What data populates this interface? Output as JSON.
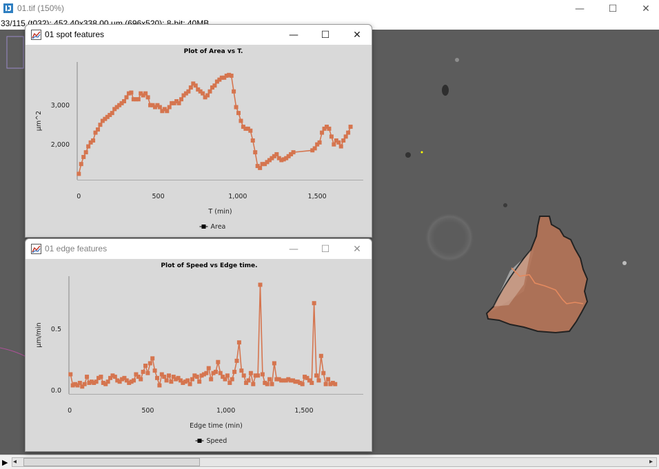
{
  "main_window": {
    "title": "01.tif (150%)",
    "info": "33/115 (t032); 452.40x338.00 µm (696x520); 8-bit; 40MB",
    "controls": {
      "minimize": "—",
      "maximize": "☐",
      "close": "✕"
    }
  },
  "slider": {
    "play": "▶",
    "left_arrow": "◂",
    "right_arrow": "▸"
  },
  "spot_window": {
    "title": "01 spot features",
    "controls": {
      "minimize": "—",
      "maximize": "☐",
      "close": "✕"
    },
    "chart_data": {
      "type": "line",
      "title": "Plot of Area vs T.",
      "xlabel": "T (min)",
      "ylabel": "µm^2",
      "xlim": [
        -10,
        1790
      ],
      "ylim": [
        1100,
        4100
      ],
      "xticks": [
        0,
        500,
        1000,
        1500
      ],
      "xtick_labels": [
        "0",
        "500",
        "1,000",
        "1,500"
      ],
      "yticks": [
        2000,
        3000
      ],
      "ytick_labels": [
        "2,000",
        "3,000"
      ],
      "legend": "bottom-center",
      "color": "#d5754f",
      "series": [
        {
          "name": "Area",
          "x": [
            0,
            15,
            30,
            45,
            60,
            75,
            90,
            105,
            120,
            135,
            150,
            165,
            180,
            195,
            210,
            225,
            240,
            255,
            270,
            285,
            300,
            315,
            330,
            345,
            360,
            375,
            390,
            405,
            420,
            435,
            450,
            465,
            480,
            495,
            510,
            525,
            540,
            555,
            570,
            585,
            600,
            615,
            630,
            645,
            660,
            675,
            690,
            705,
            720,
            735,
            750,
            765,
            780,
            795,
            810,
            825,
            840,
            855,
            870,
            885,
            900,
            915,
            930,
            945,
            960,
            975,
            990,
            1005,
            1020,
            1035,
            1050,
            1065,
            1080,
            1095,
            1110,
            1125,
            1140,
            1155,
            1170,
            1185,
            1200,
            1215,
            1230,
            1245,
            1260,
            1275,
            1290,
            1305,
            1320,
            1335,
            1350,
            1470,
            1485,
            1500,
            1515,
            1530,
            1545,
            1560,
            1575,
            1590,
            1605,
            1620,
            1635,
            1650,
            1665,
            1680,
            1695,
            1710
          ],
          "values": [
            1250,
            1500,
            1680,
            1800,
            1950,
            2050,
            2100,
            2300,
            2380,
            2500,
            2600,
            2650,
            2700,
            2750,
            2800,
            2900,
            2950,
            3000,
            3050,
            3100,
            3200,
            3300,
            3320,
            3150,
            3150,
            3150,
            3300,
            3250,
            3300,
            3200,
            3000,
            3000,
            2950,
            3000,
            2950,
            2850,
            2900,
            2850,
            2950,
            3050,
            3050,
            3100,
            3050,
            3150,
            3250,
            3300,
            3350,
            3450,
            3550,
            3500,
            3400,
            3350,
            3300,
            3200,
            3250,
            3350,
            3450,
            3500,
            3600,
            3650,
            3700,
            3700,
            3750,
            3770,
            3750,
            3350,
            2950,
            2800,
            2600,
            2450,
            2400,
            2400,
            2350,
            2100,
            1800,
            1450,
            1400,
            1500,
            1500,
            1550,
            1600,
            1650,
            1700,
            1750,
            1650,
            1600,
            1620,
            1650,
            1700,
            1750,
            1800,
            1850,
            1900,
            2000,
            2050,
            2300,
            2400,
            2450,
            2400,
            2200,
            2000,
            2100,
            2050,
            1950,
            2100,
            2200,
            2300,
            2450
          ]
        }
      ]
    }
  },
  "edge_window": {
    "title": "01 edge features",
    "controls": {
      "minimize": "—",
      "maximize": "☐",
      "close": "✕"
    },
    "chart_data": {
      "type": "line",
      "title": "Plot of Speed vs Edge time.",
      "xlabel": "Edge time (min)",
      "ylabel": "µm/min",
      "xlim": [
        -5,
        1880
      ],
      "ylim": [
        -0.03,
        0.93
      ],
      "xticks": [
        0,
        500,
        1000,
        1500
      ],
      "xtick_labels": [
        "0",
        "500",
        "1,000",
        "1,500"
      ],
      "yticks": [
        0.0,
        0.5
      ],
      "ytick_labels": [
        "0.0",
        "0.5"
      ],
      "legend": "bottom-center",
      "color": "#d5754f",
      "series": [
        {
          "name": "Speed",
          "x": [
            5,
            20,
            35,
            50,
            65,
            80,
            95,
            110,
            125,
            140,
            155,
            170,
            185,
            200,
            215,
            230,
            245,
            260,
            275,
            290,
            305,
            320,
            335,
            350,
            365,
            380,
            395,
            410,
            425,
            440,
            455,
            470,
            485,
            500,
            515,
            530,
            545,
            560,
            575,
            590,
            605,
            620,
            635,
            650,
            665,
            680,
            695,
            710,
            725,
            740,
            755,
            770,
            785,
            800,
            815,
            830,
            845,
            860,
            875,
            890,
            905,
            920,
            935,
            950,
            965,
            980,
            995,
            1010,
            1025,
            1040,
            1055,
            1070,
            1085,
            1100,
            1115,
            1130,
            1145,
            1160,
            1175,
            1190,
            1205,
            1220,
            1235,
            1250,
            1265,
            1280,
            1295,
            1310,
            1325,
            1340,
            1355,
            1370,
            1385,
            1400,
            1415,
            1430,
            1445,
            1460,
            1475,
            1490,
            1505,
            1520,
            1535,
            1550,
            1565,
            1580,
            1595,
            1610,
            1625,
            1640,
            1655,
            1670,
            1685,
            1700
          ],
          "values": [
            0.13,
            0.04,
            0.05,
            0.04,
            0.06,
            0.03,
            0.05,
            0.11,
            0.06,
            0.07,
            0.06,
            0.07,
            0.1,
            0.11,
            0.06,
            0.05,
            0.07,
            0.1,
            0.12,
            0.11,
            0.08,
            0.07,
            0.09,
            0.1,
            0.08,
            0.06,
            0.07,
            0.08,
            0.13,
            0.11,
            0.09,
            0.15,
            0.2,
            0.14,
            0.22,
            0.26,
            0.16,
            0.1,
            0.04,
            0.13,
            0.11,
            0.08,
            0.12,
            0.07,
            0.11,
            0.09,
            0.1,
            0.08,
            0.06,
            0.07,
            0.08,
            0.05,
            0.09,
            0.12,
            0.11,
            0.07,
            0.12,
            0.13,
            0.14,
            0.18,
            0.09,
            0.14,
            0.15,
            0.23,
            0.14,
            0.11,
            0.09,
            0.12,
            0.06,
            0.09,
            0.15,
            0.24,
            0.39,
            0.16,
            0.12,
            0.06,
            0.08,
            0.14,
            0.05,
            0.12,
            0.12,
            0.86,
            0.13,
            0.06,
            0.05,
            0.09,
            0.05,
            0.22,
            0.09,
            0.09,
            0.08,
            0.08,
            0.08,
            0.09,
            0.08,
            0.08,
            0.07,
            0.07,
            0.06,
            0.05,
            0.11,
            0.1,
            0.08,
            0.06,
            0.71,
            0.12,
            0.08,
            0.28,
            0.14,
            0.05,
            0.09,
            0.05,
            0.06,
            0.05
          ]
        }
      ]
    }
  }
}
